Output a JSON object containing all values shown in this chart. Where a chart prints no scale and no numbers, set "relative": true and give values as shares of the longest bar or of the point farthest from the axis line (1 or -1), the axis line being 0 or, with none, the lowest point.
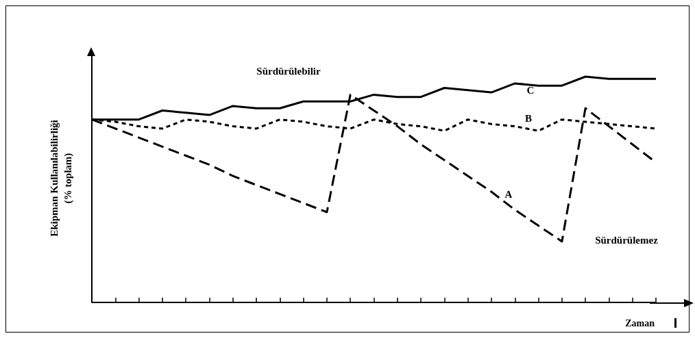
{
  "chart_data": {
    "type": "line",
    "relative": true,
    "xlabel": "Zaman",
    "ylabel": "Ekipman Kullanılabilirliği\n(% toplam)",
    "categories": [
      null,
      null,
      null,
      null,
      null,
      null,
      null,
      null,
      null,
      null,
      null,
      null,
      null,
      null,
      null,
      null,
      null,
      null,
      null,
      null,
      null,
      null,
      null,
      null,
      null
    ],
    "grid": false,
    "marker": "none",
    "series": [
      {
        "color": "#000000",
        "line_style": "solid",
        "values": [
          0.81,
          0.81,
          0.81,
          0.85,
          0.84,
          0.83,
          0.87,
          0.86,
          0.86,
          0.89,
          0.89,
          0.89,
          0.92,
          0.91,
          0.91,
          0.95,
          0.94,
          0.93,
          0.97,
          0.96,
          0.96,
          1.0,
          0.99,
          0.99,
          0.99
        ]
      },
      {
        "color": "#000000",
        "line_style": "dotted",
        "values": [
          0.81,
          0.8,
          0.78,
          0.77,
          0.81,
          0.8,
          0.78,
          0.77,
          0.81,
          0.8,
          0.78,
          0.77,
          0.81,
          0.79,
          0.78,
          0.76,
          0.81,
          0.79,
          0.78,
          0.76,
          0.81,
          0.8,
          0.79,
          0.78,
          0.77
        ]
      },
      {
        "color": "#000000",
        "line_style": "dashed",
        "values": [
          0.81,
          0.77,
          0.73,
          0.69,
          0.65,
          0.61,
          0.56,
          0.52,
          0.48,
          0.44,
          0.4,
          0.92,
          0.85,
          0.78,
          0.7,
          0.63,
          0.56,
          0.49,
          0.41,
          0.34,
          0.27,
          0.86,
          0.78,
          0.7,
          0.62
        ]
      }
    ],
    "annotations": [
      "Sürdürülebilir",
      "C",
      "B",
      "A",
      "Sürdürülemez"
    ]
  }
}
